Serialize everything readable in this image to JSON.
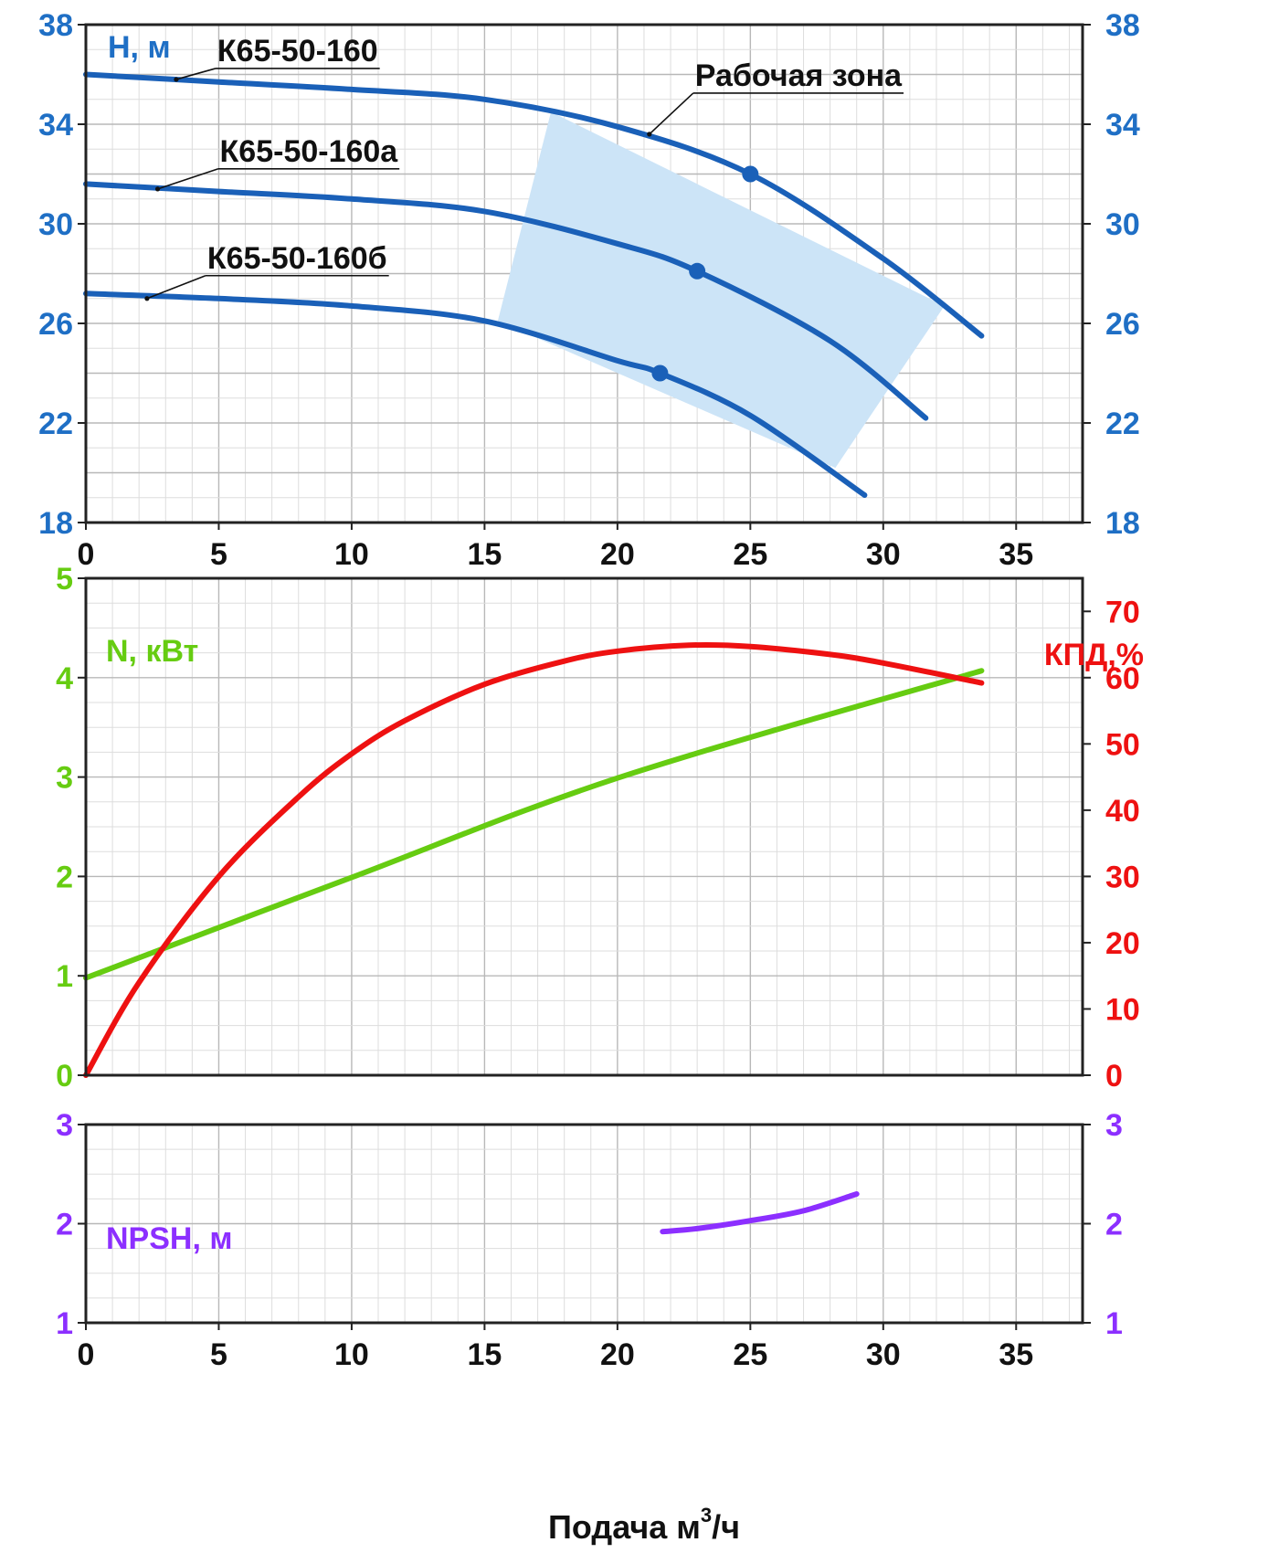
{
  "chart_data": [
    {
      "type": "line",
      "ylabel": "H, м",
      "ylim": [
        18,
        38
      ],
      "xlim": [
        0,
        37.5
      ],
      "yticks": [
        18,
        22,
        26,
        30,
        34,
        38
      ],
      "xticks": [
        0,
        5,
        10,
        15,
        20,
        25,
        30,
        35
      ],
      "grid": true,
      "colors": {
        "axis": "#1f6fc5",
        "curve": "#1a60b8",
        "zone": "#cce4f7"
      },
      "series": [
        {
          "name": "К65-50-160",
          "x": [
            0,
            5,
            10,
            15,
            20,
            25,
            30,
            33.7
          ],
          "y": [
            36.0,
            35.7,
            35.4,
            35.0,
            33.9,
            32.0,
            28.6,
            25.5
          ]
        },
        {
          "name": "К65-50-160а",
          "x": [
            0,
            5,
            10,
            15,
            20,
            23,
            28,
            31.6
          ],
          "y": [
            31.6,
            31.3,
            31.0,
            30.5,
            29.2,
            28.1,
            25.3,
            22.2
          ]
        },
        {
          "name": "К65-50-160б",
          "x": [
            0,
            5,
            10,
            15,
            20,
            21.6,
            25,
            29.3
          ],
          "y": [
            27.2,
            27.0,
            26.7,
            26.1,
            24.5,
            24.0,
            22.3,
            19.1
          ]
        }
      ],
      "markers": [
        {
          "x": 25.0,
          "y": 32.0
        },
        {
          "x": 23.0,
          "y": 28.1
        },
        {
          "x": 21.6,
          "y": 24.0
        }
      ],
      "annotations": [
        {
          "text": "К65-50-160",
          "x": 3.4,
          "y": 35.8
        },
        {
          "text": "К65-50-160а",
          "x": 2.7,
          "y": 31.4
        },
        {
          "text": "К65-50-160б",
          "x": 2.3,
          "y": 27.0
        },
        {
          "text": "Рабочая зона",
          "x": 21.2,
          "y": 33.6
        }
      ],
      "zone": {
        "x": [
          17.5,
          32.3,
          28.2,
          15.5
        ],
        "y": [
          34.5,
          26.7,
          20.2,
          26.1
        ]
      }
    },
    {
      "type": "line",
      "ylabel": "N, кВт",
      "ylabel_right": "КПД,%",
      "ylim": [
        0,
        5
      ],
      "ylim_right": [
        0,
        75
      ],
      "xlim": [
        0,
        37.5
      ],
      "yticks": [
        0,
        1,
        2,
        3,
        4,
        5
      ],
      "yticks_right": [
        0,
        10,
        20,
        30,
        40,
        50,
        60,
        70
      ],
      "xticks": [
        0,
        5,
        10,
        15,
        20,
        25,
        30,
        35
      ],
      "grid": true,
      "colors": {
        "power": "#66cc11",
        "efficiency": "#ee1111"
      },
      "series": [
        {
          "name": "N, кВт",
          "axis": "left",
          "x": [
            0,
            10,
            20,
            33.7
          ],
          "y": [
            0.98,
            1.99,
            2.99,
            4.07
          ]
        },
        {
          "name": "КПД,%",
          "axis": "right",
          "x": [
            0,
            2,
            5,
            8,
            10,
            12,
            15,
            18,
            20,
            22.7,
            25,
            28,
            30,
            33.7
          ],
          "y": [
            0,
            14,
            30,
            42,
            48.5,
            53.5,
            59,
            62.5,
            64,
            64.9,
            64.7,
            63.5,
            62.2,
            59.2
          ]
        }
      ]
    },
    {
      "type": "line",
      "ylabel": "NPSH, м",
      "ylim": [
        1,
        3
      ],
      "xlim": [
        0,
        37.5
      ],
      "yticks": [
        1,
        2,
        3
      ],
      "xticks": [
        0,
        5,
        10,
        15,
        20,
        25,
        30,
        35
      ],
      "xlabel": "Подача м",
      "xlabel_sup": "3",
      "xlabel_tail": "/ч",
      "grid": true,
      "colors": {
        "npsh": "#8c2fff"
      },
      "series": [
        {
          "name": "NPSH, м",
          "x": [
            21.7,
            23,
            25,
            27,
            29
          ],
          "y": [
            1.92,
            1.95,
            2.03,
            2.13,
            2.3
          ]
        }
      ]
    }
  ]
}
